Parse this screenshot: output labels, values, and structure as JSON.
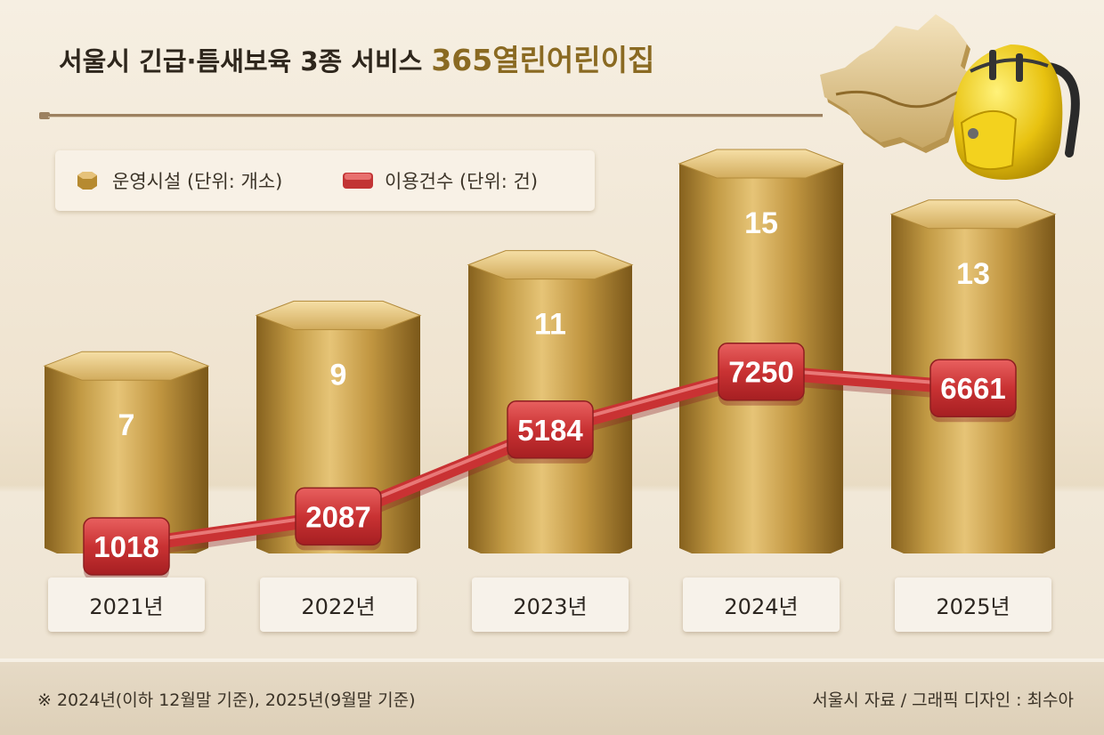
{
  "title": {
    "main": "서울시 긴급·틈새보육 3종 서비스",
    "accent": "365열린어린이집"
  },
  "legend": [
    {
      "label": "운영시설 (단위: 개소)",
      "swatch": "hexagon",
      "color": "#c39a3f"
    },
    {
      "label": "이용건수 (단위: 건)",
      "swatch": "rounded-rect",
      "color": "#cf3a3c"
    }
  ],
  "chart_data": {
    "type": "bar",
    "categories": [
      "2021년",
      "2022년",
      "2023년",
      "2024년",
      "2025년"
    ],
    "series": [
      {
        "name": "운영시설 (단위: 개소)",
        "type": "bar",
        "values": [
          7,
          9,
          11,
          15,
          13
        ]
      },
      {
        "name": "이용건수 (단위: 건)",
        "type": "line",
        "values": [
          1018,
          2087,
          5184,
          7250,
          6661
        ]
      }
    ],
    "grid": false,
    "legend_position": "top-left"
  },
  "colors": {
    "gold": "#c39a3f",
    "gold_dark": "#8a6520",
    "red": "#cf3a3c",
    "title_accent": "#8a6a22"
  },
  "footer": {
    "note": "※ 2024년(이하 12월말 기준), 2025년(9월말 기준)",
    "credit": "서울시 자료 / 그래픽 디자인 : 최수아"
  },
  "decoration": {
    "icons": [
      "seoul-map-icon",
      "backpack-icon"
    ]
  }
}
